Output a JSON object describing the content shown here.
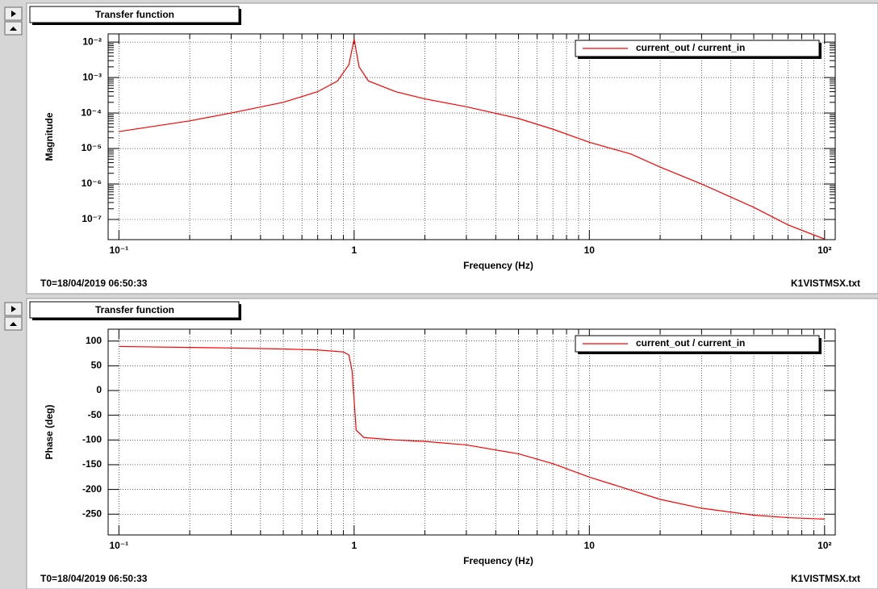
{
  "chart_data": [
    {
      "type": "line",
      "title": "Transfer function",
      "x_label": "Frequency (Hz)",
      "y_label": "Magnitude",
      "footer_left": "T0=18/04/2019 06:50:33",
      "footer_right": "K1VISTMSX.txt",
      "xscale": "log",
      "yscale": "log",
      "grid": true,
      "legend": "top-right",
      "xlim": [
        0.09,
        111
      ],
      "ylim": [
        2.7e-08,
        0.017
      ],
      "xticks": [
        {
          "value": 0.1,
          "label": "10⁻¹"
        },
        1,
        10,
        {
          "value": 100,
          "label": "10²"
        }
      ],
      "yticks": [
        {
          "value": 1e-07,
          "label": "10⁻⁷"
        },
        {
          "value": 1e-06,
          "label": "10⁻⁶"
        },
        {
          "value": 1e-05,
          "label": "10⁻⁵"
        },
        {
          "value": 0.0001,
          "label": "10⁻⁴"
        },
        {
          "value": 0.001,
          "label": "10⁻³"
        },
        {
          "value": 0.01,
          "label": "10⁻²"
        }
      ],
      "x": [
        0.1,
        0.2,
        0.3,
        0.5,
        0.7,
        0.85,
        0.95,
        1.0,
        1.05,
        1.15,
        1.5,
        2,
        3,
        5,
        7,
        10,
        15,
        20,
        30,
        50,
        70,
        100
      ],
      "series": [
        {
          "name": "current_out / current_in",
          "color": "#ff0000",
          "values": [
            3e-05,
            6e-05,
            0.0001,
            0.0002,
            0.0004,
            0.0008,
            0.0023,
            0.012,
            0.002,
            0.0008,
            0.0004,
            0.00025,
            0.00015,
            7e-05,
            3.5e-05,
            1.5e-05,
            7e-06,
            3e-06,
            1e-06,
            2.2e-07,
            7e-08,
            2.8e-08
          ]
        }
      ]
    },
    {
      "type": "line",
      "title": "Transfer function",
      "x_label": "Frequency (Hz)",
      "y_label": "Phase (deg)",
      "footer_left": "T0=18/04/2019 06:50:33",
      "footer_right": "K1VISTMSX.txt",
      "xscale": "log",
      "yscale": "linear",
      "grid": true,
      "legend": "top-right",
      "xlim": [
        0.09,
        111
      ],
      "ylim": [
        -292,
        124
      ],
      "xticks": [
        {
          "value": 0.1,
          "label": "10⁻¹"
        },
        1,
        10,
        {
          "value": 100,
          "label": "10²"
        }
      ],
      "yticks": [
        -250,
        -200,
        -150,
        -100,
        -50,
        0,
        50,
        100
      ],
      "x": [
        0.1,
        0.3,
        0.5,
        0.7,
        0.9,
        0.95,
        0.98,
        1.0,
        1.02,
        1.1,
        1.5,
        2,
        3,
        5,
        7,
        10,
        20,
        30,
        50,
        70,
        100
      ],
      "series": [
        {
          "name": "current_out / current_in",
          "color": "#ff0000",
          "values": [
            89,
            86,
            84,
            82,
            78,
            72,
            40,
            -20,
            -80,
            -95,
            -100,
            -103,
            -110,
            -128,
            -148,
            -175,
            -220,
            -238,
            -252,
            -257,
            -260
          ]
        }
      ]
    }
  ]
}
